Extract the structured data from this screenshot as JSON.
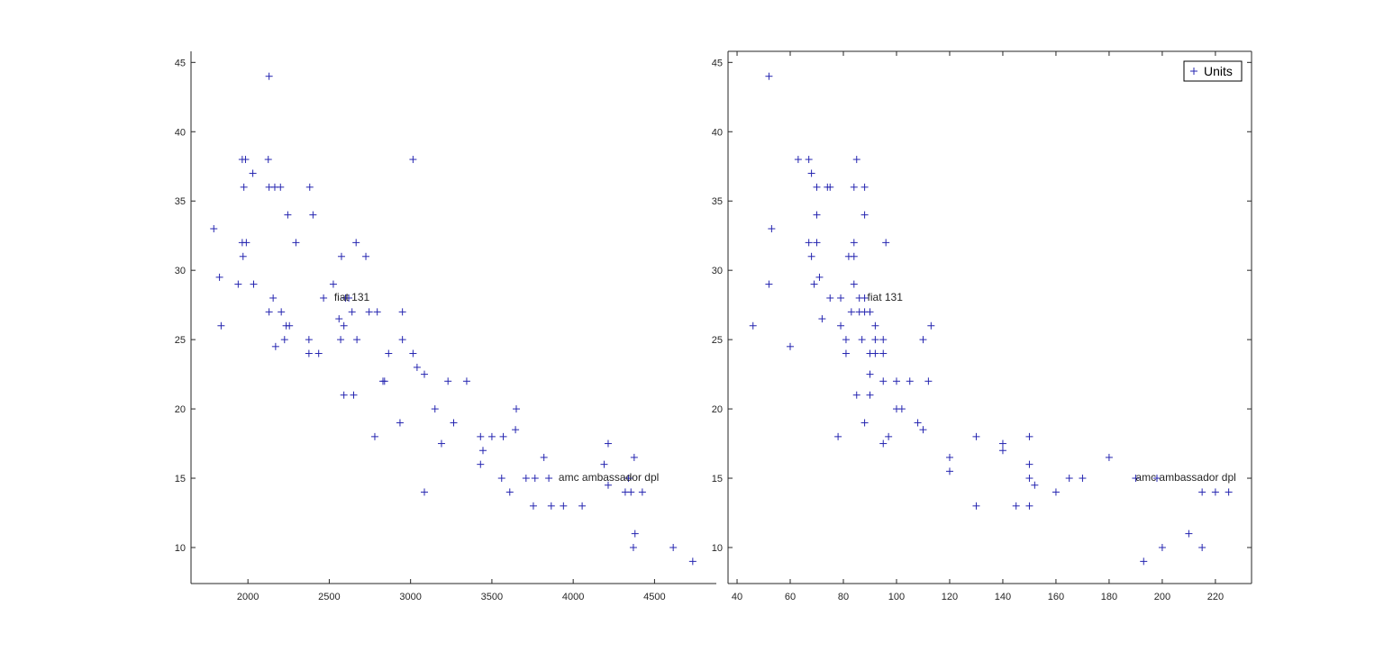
{
  "colors": {
    "marker": "#2525b0",
    "axis": "#262626",
    "background": "#ffffff"
  },
  "chart_data": [
    {
      "type": "scatter",
      "xlim": [
        1650,
        4880
      ],
      "ylim": [
        7.4,
        45.8
      ],
      "xticks": [
        2000,
        2500,
        3000,
        3500,
        4000,
        4500
      ],
      "yticks": [
        10,
        15,
        20,
        25,
        30,
        35,
        40,
        45
      ],
      "box": false,
      "marker": "+",
      "annotations": [
        {
          "text": "fiat 131",
          "x": 2530,
          "y": 28
        },
        {
          "text": "amc ambassador dpl",
          "x": 3910,
          "y": 15
        }
      ],
      "points": [
        [
          1790,
          33
        ],
        [
          1825,
          29.5
        ],
        [
          1835,
          26
        ],
        [
          1940,
          29
        ],
        [
          1965,
          32
        ],
        [
          1970,
          31
        ],
        [
          1965,
          38
        ],
        [
          1985,
          38
        ],
        [
          1975,
          36
        ],
        [
          1990,
          32
        ],
        [
          2030,
          37
        ],
        [
          2035,
          29
        ],
        [
          2130,
          44
        ],
        [
          2125,
          38
        ],
        [
          2130,
          36
        ],
        [
          2130,
          27
        ],
        [
          2165,
          36
        ],
        [
          2155,
          28
        ],
        [
          2170,
          24.5
        ],
        [
          2200,
          36
        ],
        [
          2205,
          27
        ],
        [
          2225,
          25
        ],
        [
          2235,
          26
        ],
        [
          2245,
          34
        ],
        [
          2255,
          26
        ],
        [
          2295,
          32
        ],
        [
          2380,
          36
        ],
        [
          2375,
          25
        ],
        [
          2375,
          24
        ],
        [
          2400,
          34
        ],
        [
          2435,
          24
        ],
        [
          2465,
          28
        ],
        [
          2525,
          29
        ],
        [
          2560,
          26.5
        ],
        [
          2575,
          31
        ],
        [
          2570,
          25
        ],
        [
          2590,
          26
        ],
        [
          2590,
          21
        ],
        [
          2600,
          28
        ],
        [
          2620,
          28
        ],
        [
          2640,
          27
        ],
        [
          2650,
          21
        ],
        [
          2665,
          32
        ],
        [
          2670,
          25
        ],
        [
          2725,
          31
        ],
        [
          2745,
          27
        ],
        [
          2780,
          18
        ],
        [
          2795,
          27
        ],
        [
          2830,
          22
        ],
        [
          2840,
          22
        ],
        [
          2865,
          24
        ],
        [
          2935,
          19
        ],
        [
          2950,
          25
        ],
        [
          2950,
          27
        ],
        [
          3015,
          38
        ],
        [
          3015,
          24
        ],
        [
          3040,
          23
        ],
        [
          3085,
          14
        ],
        [
          3085,
          22.5
        ],
        [
          3150,
          20
        ],
        [
          3190,
          17.5
        ],
        [
          3230,
          22
        ],
        [
          3265,
          19
        ],
        [
          3345,
          22
        ],
        [
          3430,
          18
        ],
        [
          3430,
          16
        ],
        [
          3445,
          17
        ],
        [
          3500,
          18
        ],
        [
          3560,
          15
        ],
        [
          3570,
          18
        ],
        [
          3610,
          14
        ],
        [
          3645,
          18.5
        ],
        [
          3650,
          20
        ],
        [
          3710,
          15
        ],
        [
          3755,
          13
        ],
        [
          3765,
          15
        ],
        [
          3820,
          16.5
        ],
        [
          3850,
          15
        ],
        [
          3865,
          13
        ],
        [
          3940,
          13
        ],
        [
          4055,
          13
        ],
        [
          4190,
          16
        ],
        [
          4215,
          17.5
        ],
        [
          4215,
          14.5
        ],
        [
          4320,
          14
        ],
        [
          4340,
          15
        ],
        [
          4355,
          14
        ],
        [
          4375,
          16.5
        ],
        [
          4380,
          11
        ],
        [
          4370,
          10
        ],
        [
          4425,
          14
        ],
        [
          4615,
          10
        ],
        [
          4735,
          9
        ]
      ]
    },
    {
      "type": "scatter",
      "xlim": [
        36.6,
        233.6
      ],
      "ylim": [
        7.4,
        45.8
      ],
      "xticks": [
        40,
        60,
        80,
        100,
        120,
        140,
        160,
        180,
        200,
        220
      ],
      "yticks": [
        10,
        15,
        20,
        25,
        30,
        35,
        40,
        45
      ],
      "box": true,
      "marker": "+",
      "legend": {
        "labels": [
          "Units"
        ],
        "location": "top-right"
      },
      "annotations": [
        {
          "text": "fiat 131",
          "x": 89,
          "y": 28
        },
        {
          "text": "amc ambassador dpl",
          "x": 190,
          "y": 15
        }
      ],
      "points": [
        [
          46,
          26
        ],
        [
          52,
          44
        ],
        [
          52,
          29
        ],
        [
          53,
          33
        ],
        [
          60,
          24.5
        ],
        [
          63,
          38
        ],
        [
          67,
          32
        ],
        [
          67,
          38
        ],
        [
          68,
          37
        ],
        [
          68,
          31
        ],
        [
          69,
          29
        ],
        [
          70,
          36
        ],
        [
          70,
          34
        ],
        [
          70,
          32
        ],
        [
          71,
          29.5
        ],
        [
          72,
          26.5
        ],
        [
          74,
          36
        ],
        [
          75,
          36
        ],
        [
          75,
          28
        ],
        [
          78,
          18
        ],
        [
          79,
          28
        ],
        [
          79,
          26
        ],
        [
          81,
          25
        ],
        [
          81,
          24
        ],
        [
          82,
          31
        ],
        [
          83,
          27
        ],
        [
          84,
          36
        ],
        [
          84,
          32
        ],
        [
          84,
          29
        ],
        [
          84,
          31
        ],
        [
          85,
          21
        ],
        [
          85,
          38
        ],
        [
          86,
          27
        ],
        [
          86,
          28
        ],
        [
          87,
          25
        ],
        [
          88,
          19
        ],
        [
          88,
          28
        ],
        [
          88,
          27
        ],
        [
          88,
          36
        ],
        [
          88,
          34
        ],
        [
          90,
          27
        ],
        [
          90,
          24
        ],
        [
          90,
          22.5
        ],
        [
          90,
          21
        ],
        [
          92,
          26
        ],
        [
          92,
          25
        ],
        [
          92,
          24
        ],
        [
          95,
          25
        ],
        [
          95,
          24
        ],
        [
          95,
          22
        ],
        [
          95,
          17.5
        ],
        [
          96,
          32
        ],
        [
          97,
          18
        ],
        [
          100,
          22
        ],
        [
          100,
          20
        ],
        [
          102,
          20
        ],
        [
          105,
          22
        ],
        [
          108,
          19
        ],
        [
          110,
          18.5
        ],
        [
          110,
          25
        ],
        [
          112,
          22
        ],
        [
          113,
          26
        ],
        [
          120,
          16.5
        ],
        [
          120,
          15.5
        ],
        [
          130,
          18
        ],
        [
          130,
          13
        ],
        [
          140,
          17.5
        ],
        [
          140,
          17
        ],
        [
          145,
          13
        ],
        [
          150,
          15
        ],
        [
          150,
          18
        ],
        [
          150,
          16
        ],
        [
          150,
          13
        ],
        [
          152,
          14.5
        ],
        [
          160,
          14
        ],
        [
          165,
          15
        ],
        [
          170,
          15
        ],
        [
          180,
          16.5
        ],
        [
          190,
          15
        ],
        [
          193,
          9
        ],
        [
          198,
          15
        ],
        [
          200,
          10
        ],
        [
          210,
          11
        ],
        [
          215,
          14
        ],
        [
          215,
          10
        ],
        [
          220,
          14
        ],
        [
          225,
          14
        ]
      ]
    }
  ]
}
